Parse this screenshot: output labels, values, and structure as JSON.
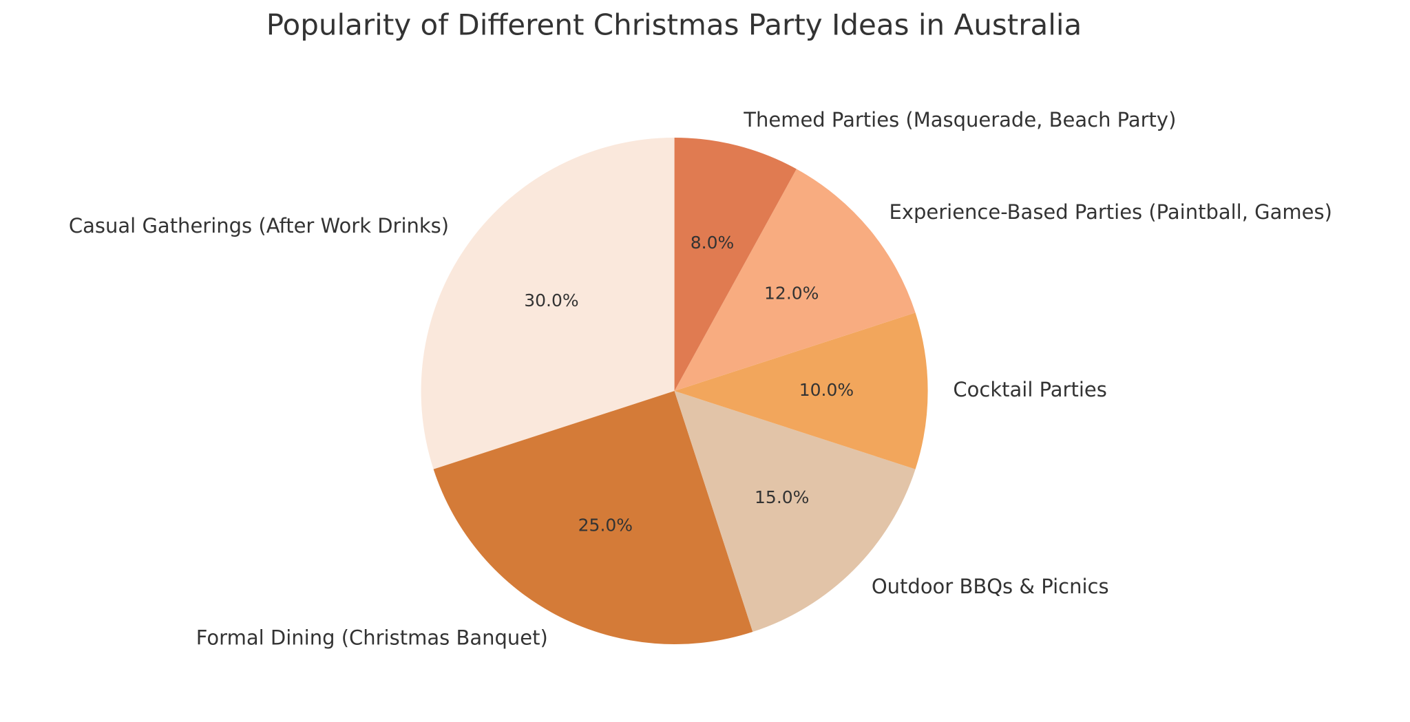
{
  "chart_data": {
    "type": "pie",
    "title": "Popularity of Different Christmas Party Ideas in Australia",
    "categories": [
      "Casual Gatherings (After Work Drinks)",
      "Formal Dining (Christmas Banquet)",
      "Outdoor BBQs & Picnics",
      "Cocktail Parties",
      "Experience-Based Parties (Paintball, Games)",
      "Themed Parties (Masquerade, Beach Party)"
    ],
    "values": [
      30,
      25,
      15,
      10,
      12,
      8
    ],
    "value_labels": [
      "30.0%",
      "25.0%",
      "15.0%",
      "10.0%",
      "12.0%",
      "8.0%"
    ],
    "colors": [
      "#fae8dc",
      "#d47b38",
      "#e2c4a8",
      "#f2a65c",
      "#f8ac80",
      "#e07b51"
    ],
    "start_angle": 90,
    "direction": "counterclockwise"
  }
}
